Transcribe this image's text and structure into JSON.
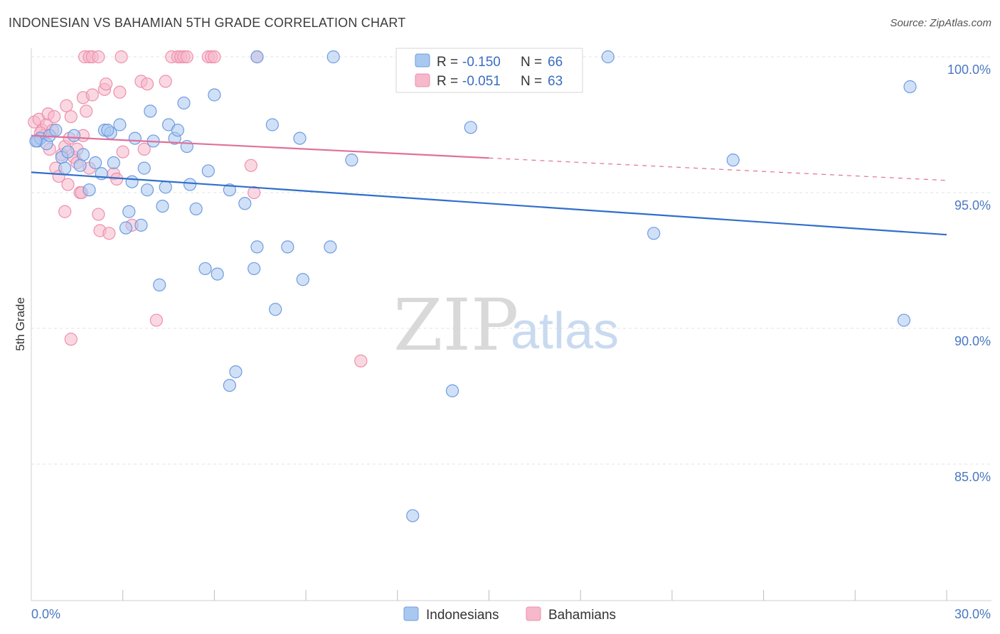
{
  "title": "INDONESIAN VS BAHAMIAN 5TH GRADE CORRELATION CHART",
  "source": "Source: ZipAtlas.com",
  "watermark": {
    "zip": "ZIP",
    "atlas": "atlas"
  },
  "colors": {
    "blue_fill": "#a9c8f0",
    "blue_stroke": "#6f9be0",
    "blue_line": "#2f6fcb",
    "pink_fill": "#f6b8cb",
    "pink_stroke": "#ee8fae",
    "pink_line": "#e0709a",
    "grid": "#e3e3e3",
    "tick_label": "#4a78c2"
  },
  "legend": {
    "rows": [
      {
        "r_label": "R =",
        "r_value": "-0.150",
        "n_label": "N =",
        "n_value": "66"
      },
      {
        "r_label": "R =",
        "r_value": "-0.051",
        "n_label": "N =",
        "n_value": "63"
      }
    ]
  },
  "chart_data": {
    "type": "scatter",
    "title": "INDONESIAN VS BAHAMIAN 5TH GRADE CORRELATION CHART",
    "xlabel": "",
    "ylabel": "5th Grade",
    "xlim": [
      0,
      30
    ],
    "ylim": [
      80,
      100.5
    ],
    "x_tick_labels": [
      {
        "value": 0,
        "label": "0.0%"
      },
      {
        "value": 30,
        "label": "30.0%"
      }
    ],
    "x_minor_ticks": [
      3,
      6,
      9,
      12,
      15,
      18,
      21,
      24,
      27,
      30
    ],
    "y_ticks": [
      {
        "value": 100,
        "label": "100.0%"
      },
      {
        "value": 95,
        "label": "95.0%"
      },
      {
        "value": 90,
        "label": "90.0%"
      },
      {
        "value": 85,
        "label": "85.0%"
      }
    ],
    "series": [
      {
        "name": "Indonesians",
        "color_key": "blue",
        "trend": {
          "x0": 0,
          "y0": 95.75,
          "x1": 30,
          "y1": 93.45,
          "dash_from": null
        },
        "points": [
          [
            0.2,
            96.9
          ],
          [
            0.3,
            97.0
          ],
          [
            0.5,
            96.8
          ],
          [
            0.6,
            97.1
          ],
          [
            0.8,
            97.3
          ],
          [
            1.0,
            96.3
          ],
          [
            1.1,
            95.9
          ],
          [
            1.2,
            96.5
          ],
          [
            1.4,
            97.1
          ],
          [
            1.7,
            96.4
          ],
          [
            1.9,
            95.1
          ],
          [
            2.1,
            96.1
          ],
          [
            2.3,
            95.7
          ],
          [
            2.4,
            97.3
          ],
          [
            2.6,
            97.2
          ],
          [
            2.7,
            96.1
          ],
          [
            2.9,
            97.5
          ],
          [
            3.1,
            93.7
          ],
          [
            3.2,
            94.3
          ],
          [
            3.3,
            95.4
          ],
          [
            3.4,
            97.0
          ],
          [
            3.6,
            93.8
          ],
          [
            3.7,
            95.9
          ],
          [
            3.8,
            95.1
          ],
          [
            3.9,
            98.0
          ],
          [
            4.2,
            91.6
          ],
          [
            4.3,
            94.5
          ],
          [
            4.4,
            95.2
          ],
          [
            4.5,
            97.5
          ],
          [
            4.7,
            97.0
          ],
          [
            4.8,
            97.3
          ],
          [
            5.0,
            98.3
          ],
          [
            5.1,
            96.7
          ],
          [
            5.2,
            95.3
          ],
          [
            5.4,
            94.4
          ],
          [
            5.7,
            92.2
          ],
          [
            5.8,
            95.8
          ],
          [
            6.0,
            98.6
          ],
          [
            6.1,
            92.0
          ],
          [
            6.5,
            95.1
          ],
          [
            6.5,
            87.9
          ],
          [
            6.7,
            88.4
          ],
          [
            7.0,
            94.6
          ],
          [
            7.4,
            100.0
          ],
          [
            7.3,
            92.2
          ],
          [
            7.4,
            93.0
          ],
          [
            7.9,
            97.5
          ],
          [
            8.0,
            90.7
          ],
          [
            8.4,
            93.0
          ],
          [
            8.8,
            97.0
          ],
          [
            8.9,
            91.8
          ],
          [
            9.8,
            93.0
          ],
          [
            9.9,
            100.0
          ],
          [
            10.5,
            96.2
          ],
          [
            12.5,
            83.1
          ],
          [
            13.8,
            87.7
          ],
          [
            14.4,
            97.4
          ],
          [
            18.9,
            100.0
          ],
          [
            20.4,
            93.5
          ],
          [
            23.0,
            96.2
          ],
          [
            28.6,
            90.3
          ],
          [
            28.8,
            98.9
          ],
          [
            0.15,
            96.9
          ],
          [
            1.6,
            96.0
          ],
          [
            4.0,
            96.9
          ],
          [
            2.5,
            97.3
          ]
        ]
      },
      {
        "name": "Bahamians",
        "color_key": "pink",
        "trend": {
          "x0": 0,
          "y0": 97.1,
          "x1": 30,
          "y1": 95.45,
          "dash_from": 15.0
        },
        "points": [
          [
            0.1,
            97.6
          ],
          [
            0.2,
            96.9
          ],
          [
            0.25,
            97.7
          ],
          [
            0.35,
            97.3
          ],
          [
            0.4,
            97.1
          ],
          [
            0.5,
            97.5
          ],
          [
            0.55,
            97.9
          ],
          [
            0.6,
            96.6
          ],
          [
            0.7,
            97.3
          ],
          [
            0.75,
            97.8
          ],
          [
            0.8,
            95.9
          ],
          [
            0.9,
            95.6
          ],
          [
            1.0,
            96.4
          ],
          [
            1.1,
            96.7
          ],
          [
            1.1,
            94.3
          ],
          [
            1.15,
            98.2
          ],
          [
            1.2,
            95.3
          ],
          [
            1.3,
            89.6
          ],
          [
            1.3,
            97.8
          ],
          [
            1.4,
            96.3
          ],
          [
            1.5,
            96.6
          ],
          [
            1.5,
            96.1
          ],
          [
            1.6,
            95.0
          ],
          [
            1.65,
            95.0
          ],
          [
            1.7,
            98.5
          ],
          [
            1.7,
            97.1
          ],
          [
            1.75,
            100.0
          ],
          [
            1.8,
            98.0
          ],
          [
            1.9,
            95.9
          ],
          [
            1.9,
            100.0
          ],
          [
            2.0,
            100.0
          ],
          [
            2.0,
            98.6
          ],
          [
            2.2,
            100.0
          ],
          [
            2.2,
            94.2
          ],
          [
            2.25,
            93.6
          ],
          [
            2.4,
            98.8
          ],
          [
            2.45,
            99.0
          ],
          [
            2.55,
            93.5
          ],
          [
            2.7,
            95.7
          ],
          [
            2.8,
            95.5
          ],
          [
            2.9,
            98.7
          ],
          [
            2.95,
            100.0
          ],
          [
            3.0,
            96.5
          ],
          [
            3.3,
            93.8
          ],
          [
            3.6,
            99.1
          ],
          [
            3.7,
            96.6
          ],
          [
            3.8,
            99.0
          ],
          [
            4.1,
            90.3
          ],
          [
            4.4,
            99.1
          ],
          [
            4.6,
            100.0
          ],
          [
            4.8,
            100.0
          ],
          [
            4.9,
            100.0
          ],
          [
            5.0,
            100.0
          ],
          [
            5.1,
            100.0
          ],
          [
            5.8,
            100.0
          ],
          [
            5.9,
            100.0
          ],
          [
            6.0,
            100.0
          ],
          [
            7.2,
            96.0
          ],
          [
            7.3,
            95.0
          ],
          [
            7.4,
            100.0
          ],
          [
            10.8,
            88.8
          ],
          [
            0.3,
            97.2
          ],
          [
            1.25,
            97.0
          ]
        ]
      }
    ]
  },
  "bottom_legend": [
    "Indonesians",
    "Bahamians"
  ]
}
